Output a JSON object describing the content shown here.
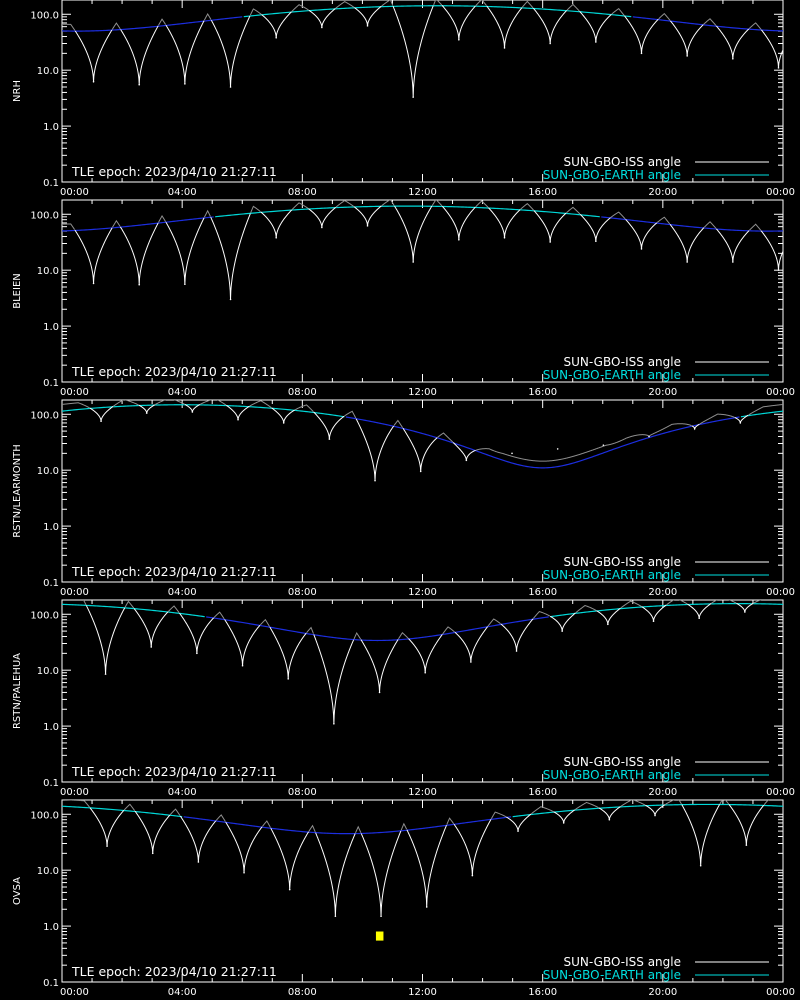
{
  "chart_data": {
    "type": "line",
    "y_scale": "log",
    "ylim": [
      0.1,
      180
    ],
    "y_ticks": [
      "100.0",
      "10.0",
      "1.0",
      "0.1"
    ],
    "x_ticks": [
      "00:00",
      "04:00",
      "08:00",
      "12:00",
      "16:00",
      "20:00",
      "00:00"
    ],
    "xlim_hours": [
      0,
      24
    ],
    "epoch_label": "TLE epoch: 2023/04/10 21:27:11",
    "legend": [
      {
        "label": "SUN-GBO-ISS angle",
        "color": "#ffffff"
      },
      {
        "label": "SUN-GBO-EARTH angle",
        "color": "#00e0e0"
      }
    ],
    "colors": {
      "background": "#000000",
      "axes": "#ffffff",
      "iss_visible": "#ffffff",
      "iss_night": "#909090",
      "earth_day": "#00d8d8",
      "earth_night": "#1c2ee0",
      "marker": "#ffff00"
    },
    "panels": [
      {
        "ylabel": "NRH",
        "earth_angle": {
          "noon_hour": 12.5,
          "max_deg": 142,
          "min_deg": 50
        },
        "iss_passes": [
          {
            "t": 1.05,
            "min": 6.2
          },
          {
            "t": 2.57,
            "min": 5.5
          },
          {
            "t": 4.09,
            "min": 5.7
          },
          {
            "t": 5.61,
            "min": 5.0
          },
          {
            "t": 7.13,
            "min": 38
          },
          {
            "t": 8.65,
            "min": 58
          },
          {
            "t": 10.17,
            "min": 62
          },
          {
            "t": 11.69,
            "min": 3.3
          },
          {
            "t": 13.21,
            "min": 35
          },
          {
            "t": 14.73,
            "min": 25
          },
          {
            "t": 16.25,
            "min": 30
          },
          {
            "t": 17.77,
            "min": 32
          },
          {
            "t": 19.29,
            "min": 20
          },
          {
            "t": 20.81,
            "min": 18
          },
          {
            "t": 22.33,
            "min": 16
          },
          {
            "t": 23.85,
            "min": 11
          }
        ]
      },
      {
        "ylabel": "BLEIEN",
        "earth_angle": {
          "noon_hour": 11.5,
          "max_deg": 140,
          "min_deg": 50
        },
        "iss_passes": [
          {
            "t": 1.05,
            "min": 5.8
          },
          {
            "t": 2.57,
            "min": 5.5
          },
          {
            "t": 4.09,
            "min": 5.6
          },
          {
            "t": 5.61,
            "min": 3.0
          },
          {
            "t": 7.13,
            "min": 38
          },
          {
            "t": 8.65,
            "min": 58
          },
          {
            "t": 10.17,
            "min": 62
          },
          {
            "t": 11.69,
            "min": 14
          },
          {
            "t": 13.21,
            "min": 35
          },
          {
            "t": 14.73,
            "min": 38
          },
          {
            "t": 16.25,
            "min": 32
          },
          {
            "t": 17.77,
            "min": 33
          },
          {
            "t": 19.29,
            "min": 24
          },
          {
            "t": 20.81,
            "min": 14
          },
          {
            "t": 22.33,
            "min": 14
          },
          {
            "t": 23.85,
            "min": 10
          }
        ]
      },
      {
        "ylabel": "RSTN/LEARMONTH",
        "earth_angle": {
          "noon_hour": 4.0,
          "max_deg": 148,
          "min_deg": 11
        },
        "iss_passes": [
          {
            "t": 1.3,
            "min": 75
          },
          {
            "t": 2.82,
            "min": 105
          },
          {
            "t": 4.34,
            "min": 110
          },
          {
            "t": 5.86,
            "min": 80
          },
          {
            "t": 7.38,
            "min": 70
          },
          {
            "t": 8.9,
            "min": 36
          },
          {
            "t": 10.42,
            "min": 6.5
          },
          {
            "t": 11.94,
            "min": 9.5
          },
          {
            "t": 13.46,
            "min": 15
          },
          {
            "t": 14.98,
            "min": 20
          },
          {
            "t": 16.5,
            "min": 24
          },
          {
            "t": 18.02,
            "min": 28
          },
          {
            "t": 19.54,
            "min": 40
          },
          {
            "t": 21.06,
            "min": 55
          },
          {
            "t": 22.58,
            "min": 70
          }
        ]
      },
      {
        "ylabel": "RSTN/PALEHUA",
        "earth_angle": {
          "noon_hour": 22.5,
          "max_deg": 155,
          "min_deg": 34
        },
        "iss_passes": [
          {
            "t": 1.45,
            "min": 8.5
          },
          {
            "t": 2.97,
            "min": 26
          },
          {
            "t": 4.49,
            "min": 20
          },
          {
            "t": 6.01,
            "min": 12
          },
          {
            "t": 7.53,
            "min": 7.0
          },
          {
            "t": 9.05,
            "min": 1.1
          },
          {
            "t": 10.57,
            "min": 4.0
          },
          {
            "t": 12.09,
            "min": 9.0
          },
          {
            "t": 13.61,
            "min": 14
          },
          {
            "t": 15.13,
            "min": 22
          },
          {
            "t": 16.65,
            "min": 50
          },
          {
            "t": 18.17,
            "min": 66
          },
          {
            "t": 19.69,
            "min": 75
          },
          {
            "t": 21.21,
            "min": 85
          },
          {
            "t": 22.73,
            "min": 110
          }
        ]
      },
      {
        "ylabel": "OVSA",
        "earth_angle": {
          "noon_hour": 21.5,
          "max_deg": 150,
          "min_deg": 45
        },
        "iss_passes": [
          {
            "t": 1.5,
            "min": 27
          },
          {
            "t": 3.02,
            "min": 20
          },
          {
            "t": 4.54,
            "min": 14
          },
          {
            "t": 6.06,
            "min": 9.0
          },
          {
            "t": 7.58,
            "min": 4.5
          },
          {
            "t": 9.1,
            "min": 1.5
          },
          {
            "t": 10.62,
            "min": 1.5
          },
          {
            "t": 12.14,
            "min": 2.2
          },
          {
            "t": 13.66,
            "min": 8.0
          },
          {
            "t": 15.18,
            "min": 50
          },
          {
            "t": 16.7,
            "min": 70
          },
          {
            "t": 18.22,
            "min": 80
          },
          {
            "t": 19.74,
            "min": 95
          },
          {
            "t": 21.26,
            "min": 12
          },
          {
            "t": 22.78,
            "min": 28
          }
        ],
        "marker": {
          "t_start": 10.45,
          "t_end": 10.7,
          "y_top": 0.8,
          "y_bottom": 0.55
        }
      }
    ]
  }
}
